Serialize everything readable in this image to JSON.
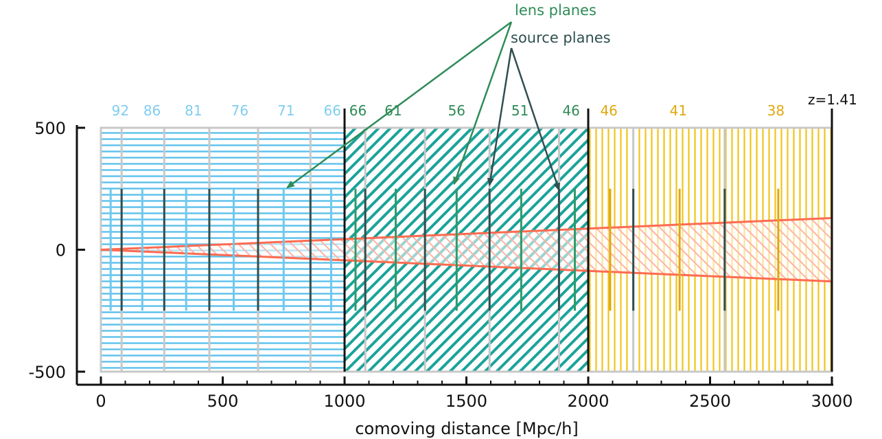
{
  "chart_data": {
    "type": "diagram",
    "xlabel": "comoving distance [Mpc/h]",
    "ylabel": "",
    "xlim": [
      0,
      3000
    ],
    "ylim": [
      -500,
      500
    ],
    "x_ticks": [
      0,
      500,
      1000,
      1500,
      2000,
      2500,
      3000
    ],
    "y_ticks": [
      500,
      0,
      -500
    ],
    "annotations": {
      "lens_planes": "lens planes",
      "source_planes": "source planes",
      "redshift": "z=1.41"
    },
    "boxes": [
      {
        "x_range": [
          0,
          1000
        ],
        "hatch": "horizontal",
        "color": "#5bc0eb",
        "label_color": "#7fcdf0",
        "snapshot_labels": [
          {
            "text": "92",
            "x": 80
          },
          {
            "text": "86",
            "x": 210
          },
          {
            "text": "81",
            "x": 380
          },
          {
            "text": "76",
            "x": 570
          },
          {
            "text": "71",
            "x": 760
          },
          {
            "text": "66",
            "x": 950
          }
        ],
        "snapshot_boundaries": [
          85,
          260,
          445,
          645,
          860
        ],
        "lens_planes": [
          40,
          170,
          350,
          545,
          750,
          945
        ],
        "source_planes": [
          85,
          260,
          445,
          645,
          860
        ]
      },
      {
        "x_range": [
          1000,
          2000
        ],
        "hatch": "diagonal",
        "color": "#1aa39a",
        "label_color": "#2e8b57",
        "snapshot_labels": [
          {
            "text": "66",
            "x": 1055
          },
          {
            "text": "61",
            "x": 1200
          },
          {
            "text": "56",
            "x": 1460
          },
          {
            "text": "51",
            "x": 1720
          },
          {
            "text": "46",
            "x": 1930
          }
        ],
        "snapshot_boundaries": [
          1085,
          1330,
          1595,
          1880
        ],
        "lens_planes": [
          1045,
          1210,
          1460,
          1725,
          1945
        ],
        "source_planes": [
          1085,
          1330,
          1595,
          1880
        ]
      },
      {
        "x_range": [
          2000,
          3000
        ],
        "hatch": "vertical",
        "color": "#f0c419",
        "label_color": "#e0a80f",
        "snapshot_labels": [
          {
            "text": "46",
            "x": 2085
          },
          {
            "text": "41",
            "x": 2370
          },
          {
            "text": "38",
            "x": 2770
          }
        ],
        "snapshot_boundaries": [
          2185,
          2560
        ],
        "lens_planes": [
          2090,
          2375,
          2780
        ],
        "source_planes": [
          2185,
          2560,
          3000
        ]
      }
    ],
    "light_cone": {
      "apex": [
        0,
        0
      ],
      "half_width_at_end": 130,
      "x_end": 3000,
      "color": "#ff6b50"
    },
    "plane_extent": [
      -250,
      250
    ],
    "arrows": {
      "lens_targets": [
        [
          765,
          255
        ],
        [
          1450,
          270
        ]
      ],
      "source_targets": [
        [
          1595,
          265
        ],
        [
          1880,
          245
        ]
      ]
    },
    "colors": {
      "grid_line": "#c8c8c8",
      "axis": "#111111",
      "lens_arrow": "#2e8b57",
      "source_arrow": "#2f4f4f",
      "annot_lens": "#2e8b57",
      "annot_source": "#2f4f4f"
    }
  }
}
